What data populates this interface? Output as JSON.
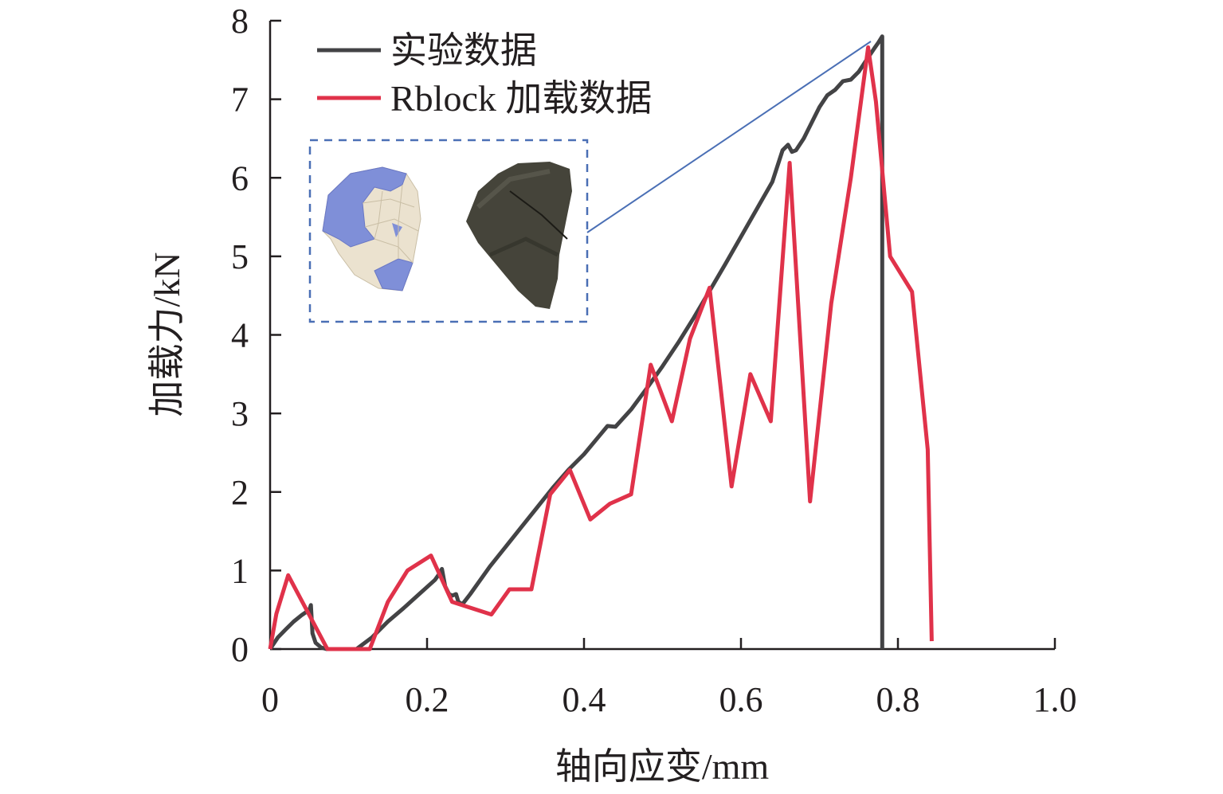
{
  "chart_data": {
    "type": "line",
    "title": "",
    "xlabel": "轴向应变/mm",
    "ylabel": "加载力/kN",
    "xlim": [
      0,
      1.0
    ],
    "ylim": [
      0,
      8
    ],
    "x_ticks": [
      "0",
      "0.2",
      "0.4",
      "0.6",
      "0.8",
      "1.0"
    ],
    "y_ticks": [
      "0",
      "1",
      "2",
      "3",
      "4",
      "5",
      "6",
      "7",
      "8"
    ],
    "grid": false,
    "legend_position": "top-left",
    "series": [
      {
        "name": "实验数据",
        "color": "#434345",
        "points": [
          [
            0,
            0
          ],
          [
            0.01,
            0.15
          ],
          [
            0.02,
            0.25
          ],
          [
            0.03,
            0.35
          ],
          [
            0.04,
            0.43
          ],
          [
            0.05,
            0.5
          ],
          [
            0.052,
            0.56
          ],
          [
            0.054,
            0.2
          ],
          [
            0.058,
            0.08
          ],
          [
            0.065,
            0.02
          ],
          [
            0.072,
            0
          ],
          [
            0.11,
            0
          ],
          [
            0.13,
            0.15
          ],
          [
            0.15,
            0.35
          ],
          [
            0.17,
            0.52
          ],
          [
            0.19,
            0.7
          ],
          [
            0.21,
            0.88
          ],
          [
            0.215,
            0.95
          ],
          [
            0.219,
            1.02
          ],
          [
            0.223,
            0.8
          ],
          [
            0.228,
            0.7
          ],
          [
            0.232,
            0.68
          ],
          [
            0.237,
            0.7
          ],
          [
            0.24,
            0.6
          ],
          [
            0.245,
            0.57
          ],
          [
            0.255,
            0.7
          ],
          [
            0.28,
            1.05
          ],
          [
            0.3,
            1.3
          ],
          [
            0.32,
            1.55
          ],
          [
            0.34,
            1.8
          ],
          [
            0.36,
            2.05
          ],
          [
            0.38,
            2.28
          ],
          [
            0.4,
            2.48
          ],
          [
            0.42,
            2.72
          ],
          [
            0.43,
            2.84
          ],
          [
            0.44,
            2.83
          ],
          [
            0.46,
            3.05
          ],
          [
            0.48,
            3.32
          ],
          [
            0.5,
            3.6
          ],
          [
            0.52,
            3.9
          ],
          [
            0.54,
            4.22
          ],
          [
            0.56,
            4.56
          ],
          [
            0.58,
            4.9
          ],
          [
            0.6,
            5.25
          ],
          [
            0.62,
            5.6
          ],
          [
            0.64,
            5.95
          ],
          [
            0.653,
            6.35
          ],
          [
            0.66,
            6.42
          ],
          [
            0.665,
            6.33
          ],
          [
            0.67,
            6.35
          ],
          [
            0.68,
            6.5
          ],
          [
            0.69,
            6.7
          ],
          [
            0.7,
            6.9
          ],
          [
            0.71,
            7.05
          ],
          [
            0.72,
            7.12
          ],
          [
            0.73,
            7.23
          ],
          [
            0.74,
            7.25
          ],
          [
            0.75,
            7.35
          ],
          [
            0.76,
            7.5
          ],
          [
            0.77,
            7.65
          ],
          [
            0.775,
            7.72
          ],
          [
            0.78,
            7.8
          ],
          [
            0.78,
            0
          ]
        ]
      },
      {
        "name": "Rblock 加载数据",
        "color": "#e0324a",
        "points": [
          [
            0,
            0
          ],
          [
            0.008,
            0.45
          ],
          [
            0.023,
            0.94
          ],
          [
            0.073,
            0
          ],
          [
            0.127,
            0
          ],
          [
            0.15,
            0.6
          ],
          [
            0.175,
            1.0
          ],
          [
            0.205,
            1.19
          ],
          [
            0.232,
            0.6
          ],
          [
            0.282,
            0.44
          ],
          [
            0.305,
            0.76
          ],
          [
            0.333,
            0.76
          ],
          [
            0.357,
            1.97
          ],
          [
            0.382,
            2.28
          ],
          [
            0.408,
            1.65
          ],
          [
            0.433,
            1.85
          ],
          [
            0.46,
            1.97
          ],
          [
            0.485,
            3.62
          ],
          [
            0.512,
            2.9
          ],
          [
            0.535,
            3.95
          ],
          [
            0.56,
            4.6
          ],
          [
            0.588,
            2.07
          ],
          [
            0.612,
            3.5
          ],
          [
            0.638,
            2.9
          ],
          [
            0.662,
            6.19
          ],
          [
            0.688,
            1.88
          ],
          [
            0.715,
            4.4
          ],
          [
            0.74,
            6.0
          ],
          [
            0.762,
            7.66
          ],
          [
            0.772,
            6.97
          ],
          [
            0.79,
            5.0
          ],
          [
            0.818,
            4.55
          ],
          [
            0.838,
            2.54
          ],
          [
            0.843,
            0.1
          ]
        ]
      }
    ]
  },
  "legend": {
    "items": [
      {
        "label": "实验数据",
        "color": "#434345"
      },
      {
        "label": "Rblock 加载数据",
        "color": "#e0324a"
      }
    ]
  },
  "inset": {
    "description_colors": {
      "callout": "#4a6fb5",
      "mesh_blue": "#7f8fd8",
      "mesh_cream": "#ebe2cf",
      "rock": "#45443a"
    }
  }
}
